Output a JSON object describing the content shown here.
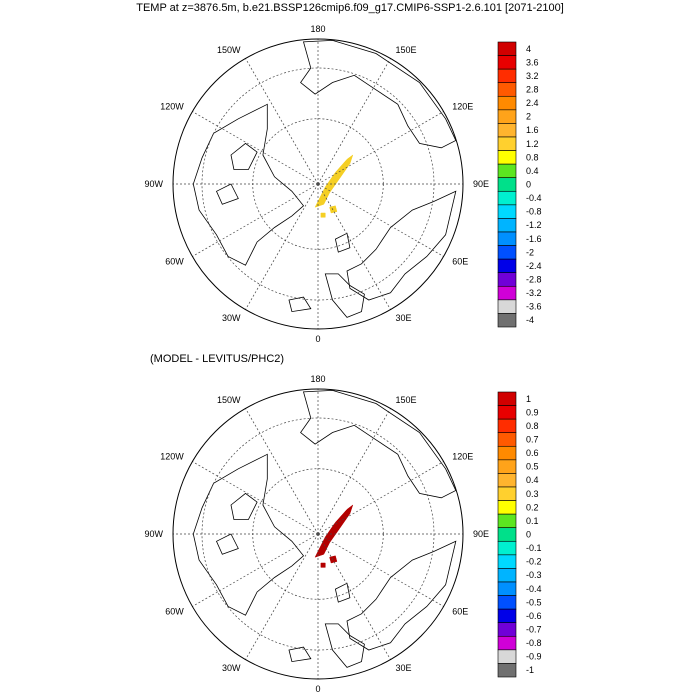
{
  "title": "TEMP at z=3876.5m, b.e21.BSSP126cmip6.f09_g17.CMIP6-SSP1-2.6.101 [2071-2100]",
  "panels": [
    {
      "name": "top-panel",
      "subtitle": "",
      "fill_color": "#f5cf24",
      "longitude_labels": [
        "180",
        "150E",
        "120E",
        "90E",
        "60E",
        "30E",
        "0",
        "30W",
        "60W",
        "90W",
        "120W",
        "150W"
      ],
      "colorbar": {
        "colors": [
          "#d10000",
          "#e80000",
          "#ff2d00",
          "#ff5a00",
          "#ff8a00",
          "#ffa31a",
          "#ffb42e",
          "#ffd02e",
          "#ffff00",
          "#5ce620",
          "#00e08a",
          "#00f0d0",
          "#00d9ff",
          "#00b4ff",
          "#0090ff",
          "#0050ff",
          "#0000e8",
          "#7000d8",
          "#d000d8",
          "#d8d8d8",
          "#707070"
        ],
        "labels": [
          "4",
          "3.6",
          "3.2",
          "2.8",
          "2.4",
          "2",
          "1.6",
          "1.2",
          "0.8",
          "0.4",
          "0",
          "-0.4",
          "-0.8",
          "-1.2",
          "-1.6",
          "-2",
          "-2.4",
          "-2.8",
          "-3.2",
          "-3.6",
          "-4"
        ]
      }
    },
    {
      "name": "bottom-panel",
      "subtitle": "(MODEL - LEVITUS/PHC2)",
      "fill_color": "#b30000",
      "longitude_labels": [
        "180",
        "150E",
        "120E",
        "90E",
        "60E",
        "30E",
        "0",
        "30W",
        "60W",
        "90W",
        "120W",
        "150W"
      ],
      "colorbar": {
        "colors": [
          "#d10000",
          "#e80000",
          "#ff2d00",
          "#ff5a00",
          "#ff8a00",
          "#ffa31a",
          "#ffb42e",
          "#ffd02e",
          "#ffff00",
          "#5ce620",
          "#00e08a",
          "#00f0d0",
          "#00d9ff",
          "#00b4ff",
          "#0090ff",
          "#0050ff",
          "#0000e8",
          "#7000d8",
          "#d000d8",
          "#d8d8d8",
          "#707070"
        ],
        "labels": [
          "1",
          "0.9",
          "0.8",
          "0.7",
          "0.6",
          "0.5",
          "0.4",
          "0.3",
          "0.2",
          "0.1",
          "0",
          "-0.1",
          "-0.2",
          "-0.3",
          "-0.4",
          "-0.5",
          "-0.6",
          "-0.7",
          "-0.8",
          "-0.9",
          "-1"
        ]
      }
    }
  ]
}
